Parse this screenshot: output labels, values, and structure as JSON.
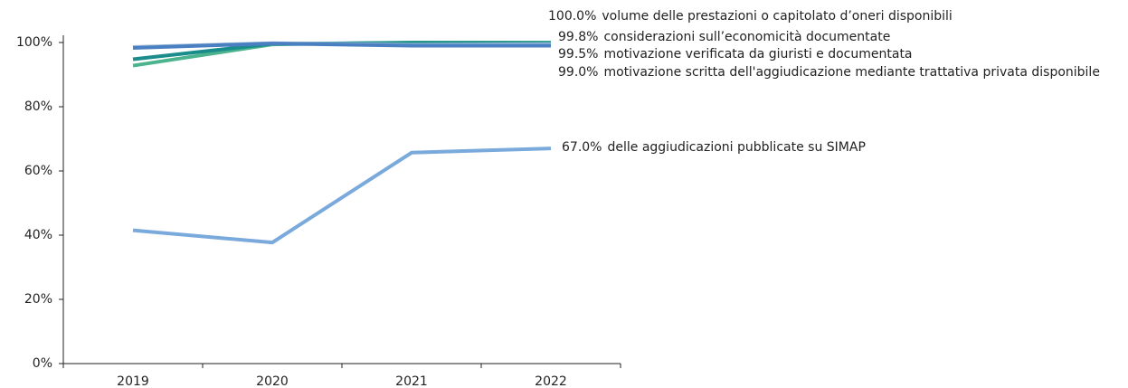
{
  "chart_data": {
    "type": "line",
    "categories": [
      "2019",
      "2020",
      "2021",
      "2022"
    ],
    "series": [
      {
        "name": "volume delle prestazioni o capitolato d’oneri disponibili",
        "color": "#4cb38f",
        "values": [
          92.8,
          99.4,
          100,
          100
        ],
        "value_labels": [
          null,
          null,
          null,
          "100.0%"
        ]
      },
      {
        "name": "considerazioni sull’economicità documentate",
        "color": "#1a8c8c",
        "values": [
          94.8,
          99.6,
          99.9,
          99.8
        ],
        "value_labels": [
          null,
          null,
          null,
          "99.8%"
        ]
      },
      {
        "name": "motivazione verificata da giuristi e documentata",
        "color": "#9bbad9",
        "values": [
          98.6,
          99.8,
          99.3,
          99.5
        ],
        "value_labels": [
          null,
          null,
          null,
          "99.5%"
        ]
      },
      {
        "name": "motivazione scritta dell'aggiudicazione mediante trattativa privata disponibile",
        "color": "#4a80c2",
        "values": [
          98.3,
          99.7,
          99.0,
          99.0
        ],
        "value_labels": [
          null,
          null,
          null,
          "99.0%"
        ]
      },
      {
        "name": "delle aggiudicazioni pubblicate su SIMAP",
        "color": "#7aa9dc",
        "values": [
          41.5,
          37.7,
          65.7,
          67.0
        ],
        "value_labels": [
          null,
          null,
          null,
          "67.0%"
        ]
      }
    ],
    "ylim": [
      0,
      100
    ],
    "yticks": [
      {
        "value": 0,
        "label": "0%"
      },
      {
        "value": 20,
        "label": "20%"
      },
      {
        "value": 40,
        "label": "40%"
      },
      {
        "value": 60,
        "label": "60%"
      },
      {
        "value": 80,
        "label": "80%"
      },
      {
        "value": 100,
        "label": "100%"
      }
    ]
  }
}
